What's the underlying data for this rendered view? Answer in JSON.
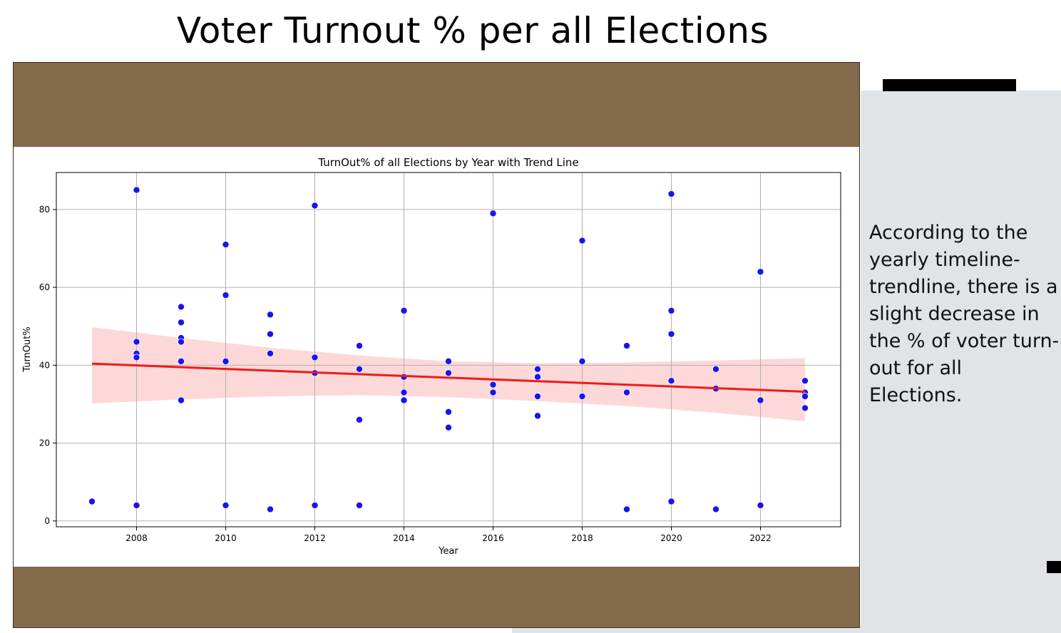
{
  "slide": {
    "title": "Voter Turnout % per all Elections",
    "commentary_lines": [
      "According to the",
      "yearly timeline-",
      "trendline, there is a",
      "slight decrease in",
      "the % of voter turn-",
      "out for all",
      "Elections."
    ]
  },
  "colors": {
    "brown_band": "#836a4b",
    "panel": "#e1e4e7",
    "points": "#1515f0",
    "trend": "#f01a1a",
    "confidence": "#fdd6d6"
  },
  "chart_data": {
    "type": "scatter",
    "title": "TurnOut% of all Elections by Year with Trend Line",
    "xlabel": "Year",
    "ylabel": "TurnOut%",
    "xlim": [
      2006.2,
      2023.8
    ],
    "ylim": [
      -1.5,
      89.5
    ],
    "xticks": [
      2008,
      2010,
      2012,
      2014,
      2016,
      2018,
      2020,
      2022
    ],
    "yticks": [
      0,
      20,
      40,
      60,
      80
    ],
    "grid": true,
    "series": [
      {
        "kind": "points",
        "x": [
          2007,
          2008,
          2008,
          2008,
          2008,
          2008,
          2009,
          2009,
          2009,
          2009,
          2009,
          2009,
          2010,
          2010,
          2010,
          2010,
          2011,
          2011,
          2011,
          2011,
          2012,
          2012,
          2012,
          2012,
          2013,
          2013,
          2013,
          2013,
          2014,
          2014,
          2014,
          2014,
          2015,
          2015,
          2015,
          2015,
          2016,
          2016,
          2016,
          2017,
          2017,
          2017,
          2017,
          2018,
          2018,
          2018,
          2019,
          2019,
          2019,
          2020,
          2020,
          2020,
          2020,
          2020,
          2021,
          2021,
          2021,
          2022,
          2022,
          2022,
          2023,
          2023,
          2023,
          2023
        ],
        "y": [
          5,
          85,
          46,
          43,
          42,
          4,
          55,
          51,
          47,
          46,
          41,
          31,
          71,
          58,
          41,
          4,
          53,
          48,
          43,
          3,
          81,
          42,
          38,
          4,
          45,
          39,
          26,
          4,
          54,
          37,
          33,
          31,
          41,
          38,
          28,
          24,
          79,
          35,
          33,
          39,
          37,
          32,
          27,
          72,
          41,
          32,
          45,
          33,
          3,
          84,
          54,
          48,
          36,
          5,
          39,
          34,
          3,
          64,
          31,
          4,
          36,
          33,
          32,
          29
        ]
      },
      {
        "kind": "trend",
        "x": [
          2007,
          2023
        ],
        "y": [
          40.4,
          33.2
        ]
      },
      {
        "kind": "confidence-band",
        "x": [
          2007,
          2009,
          2011,
          2013,
          2015,
          2017,
          2019,
          2021,
          2023
        ],
        "upper": [
          49.8,
          47.0,
          44.5,
          42.5,
          41.0,
          40.5,
          40.7,
          41.2,
          41.8
        ],
        "lower": [
          30.2,
          31.2,
          32.0,
          32.3,
          31.8,
          30.8,
          29.5,
          27.8,
          25.6
        ]
      }
    ]
  }
}
